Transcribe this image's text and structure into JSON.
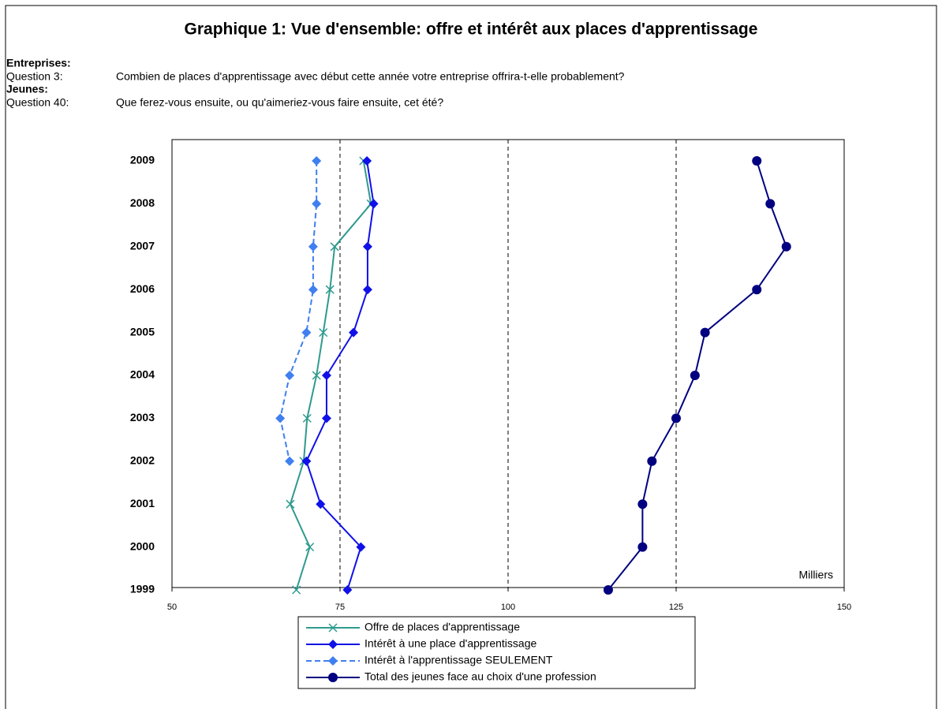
{
  "chart_data": {
    "type": "line",
    "orientation": "horizontal",
    "title": "Graphique 1: Vue d'ensemble: offre et intérêt aux places d'apprentissage",
    "questions": [
      {
        "group": "Entreprises:",
        "label": "Question 3:",
        "text": "Combien de places d'apprentissage avec début cette année votre entreprise offrira-t-elle probablement?"
      },
      {
        "group": "Jeunes:",
        "label": "Question 40:",
        "text": "Que ferez-vous ensuite, ou qu'aimeriez-vous faire ensuite, cet été?"
      }
    ],
    "categories": [
      "2009",
      "2008",
      "2007",
      "2006",
      "2005",
      "2004",
      "2003",
      "2002",
      "2001",
      "2000",
      "1999"
    ],
    "series": [
      {
        "name": "Offre de places d'apprentissage",
        "color": "#2e9a8e",
        "marker": "x",
        "dash": false,
        "values": [
          78.5,
          79.6,
          74.2,
          73.5,
          72.5,
          71.5,
          70.1,
          69.6,
          67.6,
          70.5,
          68.5
        ]
      },
      {
        "name": "Intérêt à une place d'apprentissage",
        "color": "#1010e8",
        "marker": "diamond",
        "dash": false,
        "values": [
          79.0,
          80.0,
          79.1,
          79.1,
          77.0,
          73.0,
          73.0,
          70.0,
          72.1,
          78.1,
          76.1
        ]
      },
      {
        "name": "Intérêt à l'apprentissage SEULEMENT",
        "color": "#3f7ff0",
        "marker": "diamond",
        "dash": true,
        "values": [
          71.5,
          71.5,
          71.0,
          71.0,
          70.0,
          67.5,
          66.1,
          67.5,
          null,
          null,
          null
        ]
      },
      {
        "name": "Total des jeunes face au choix d'une profession",
        "color": "#000080",
        "marker": "circle",
        "dash": false,
        "values": [
          137.0,
          139.0,
          141.4,
          137.0,
          129.3,
          127.8,
          125.0,
          121.4,
          120.0,
          120.0,
          114.9
        ]
      }
    ],
    "xlim": [
      50,
      150
    ],
    "xticks": [
      50,
      75,
      100,
      125,
      150
    ],
    "grid": true,
    "annotation": "Milliers",
    "legend": "bottom"
  }
}
